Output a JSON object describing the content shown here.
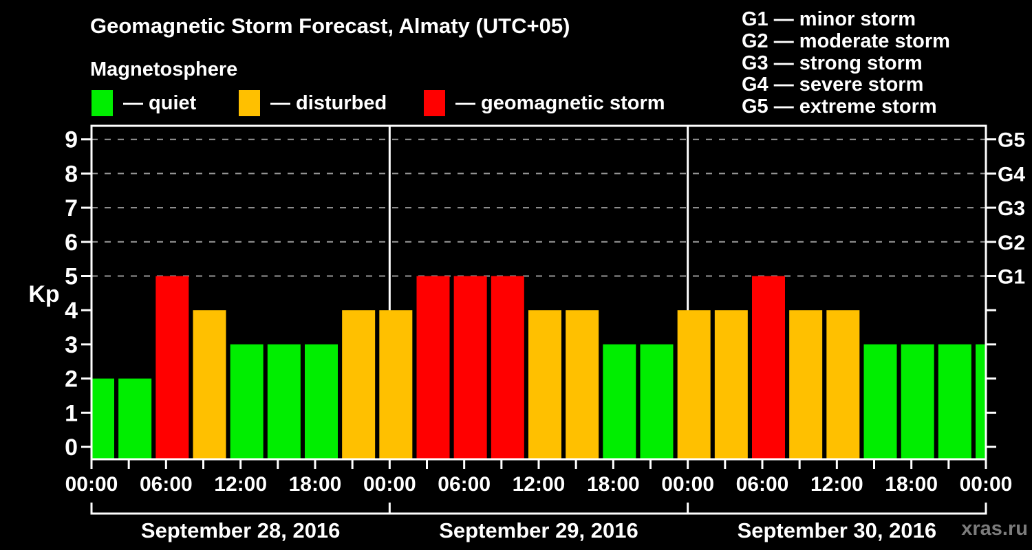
{
  "title": "Geomagnetic Storm Forecast, Almaty (UTC+05)",
  "subtitle": "Magnetosphere",
  "watermark": "xras.ru",
  "kp_legend": [
    {
      "key": "quiet",
      "label": "— quiet",
      "color": "#00ee00"
    },
    {
      "key": "disturbed",
      "label": "— disturbed",
      "color": "#ffc000"
    },
    {
      "key": "storm",
      "label": "— geomagnetic storm",
      "color": "#ff0000"
    }
  ],
  "storm_scale_legend": [
    {
      "code": "G1",
      "label": "minor storm"
    },
    {
      "code": "G2",
      "label": "moderate storm"
    },
    {
      "code": "G3",
      "label": "strong storm"
    },
    {
      "code": "G4",
      "label": "severe storm"
    },
    {
      "code": "G5",
      "label": "extreme storm"
    }
  ],
  "chart_data": {
    "type": "bar",
    "ylabel": "Kp",
    "ylim": [
      -0.37,
      9.4
    ],
    "y_ticks": [
      0,
      1,
      2,
      3,
      4,
      5,
      6,
      7,
      8,
      9
    ],
    "gridline_levels": [
      5,
      6,
      7,
      8,
      9
    ],
    "right_axis": [
      {
        "value": 5,
        "label": "G1"
      },
      {
        "value": 6,
        "label": "G2"
      },
      {
        "value": 7,
        "label": "G3"
      },
      {
        "value": 8,
        "label": "G4"
      },
      {
        "value": 9,
        "label": "G5"
      }
    ],
    "x_minor_tick_step_hours": 3,
    "x_label_step_hours": 6,
    "time_labels": [
      "00:00",
      "06:00",
      "12:00",
      "18:00",
      "00:00",
      "06:00",
      "12:00",
      "18:00",
      "00:00",
      "06:00",
      "12:00",
      "18:00",
      "00:00"
    ],
    "days": [
      {
        "label": "September 28, 2016",
        "start_hour": 0,
        "end_hour": 24
      },
      {
        "label": "September 29, 2016",
        "start_hour": 24,
        "end_hour": 48
      },
      {
        "label": "September 30, 2016",
        "start_hour": 48,
        "end_hour": 72
      }
    ],
    "bars": [
      {
        "start_hour": 0,
        "kp": 2,
        "status": "quiet"
      },
      {
        "start_hour": 3,
        "kp": 2,
        "status": "quiet"
      },
      {
        "start_hour": 6,
        "kp": 5,
        "status": "storm"
      },
      {
        "start_hour": 9,
        "kp": 4,
        "status": "disturbed"
      },
      {
        "start_hour": 12,
        "kp": 3,
        "status": "quiet"
      },
      {
        "start_hour": 15,
        "kp": 3,
        "status": "quiet"
      },
      {
        "start_hour": 18,
        "kp": 3,
        "status": "quiet"
      },
      {
        "start_hour": 21,
        "kp": 4,
        "status": "disturbed"
      },
      {
        "start_hour": 24,
        "kp": 4,
        "status": "disturbed"
      },
      {
        "start_hour": 27,
        "kp": 5,
        "status": "storm"
      },
      {
        "start_hour": 30,
        "kp": 5,
        "status": "storm"
      },
      {
        "start_hour": 33,
        "kp": 5,
        "status": "storm"
      },
      {
        "start_hour": 36,
        "kp": 4,
        "status": "disturbed"
      },
      {
        "start_hour": 39,
        "kp": 4,
        "status": "disturbed"
      },
      {
        "start_hour": 42,
        "kp": 3,
        "status": "quiet"
      },
      {
        "start_hour": 45,
        "kp": 3,
        "status": "quiet"
      },
      {
        "start_hour": 48,
        "kp": 4,
        "status": "disturbed"
      },
      {
        "start_hour": 51,
        "kp": 4,
        "status": "disturbed"
      },
      {
        "start_hour": 54,
        "kp": 5,
        "status": "storm"
      },
      {
        "start_hour": 57,
        "kp": 4,
        "status": "disturbed"
      },
      {
        "start_hour": 60,
        "kp": 4,
        "status": "disturbed"
      },
      {
        "start_hour": 63,
        "kp": 3,
        "status": "quiet"
      },
      {
        "start_hour": 66,
        "kp": 3,
        "status": "quiet"
      },
      {
        "start_hour": 69,
        "kp": 3,
        "status": "quiet"
      },
      {
        "start_hour": 72,
        "kp": 3,
        "status": "quiet",
        "clipped": true
      }
    ]
  }
}
